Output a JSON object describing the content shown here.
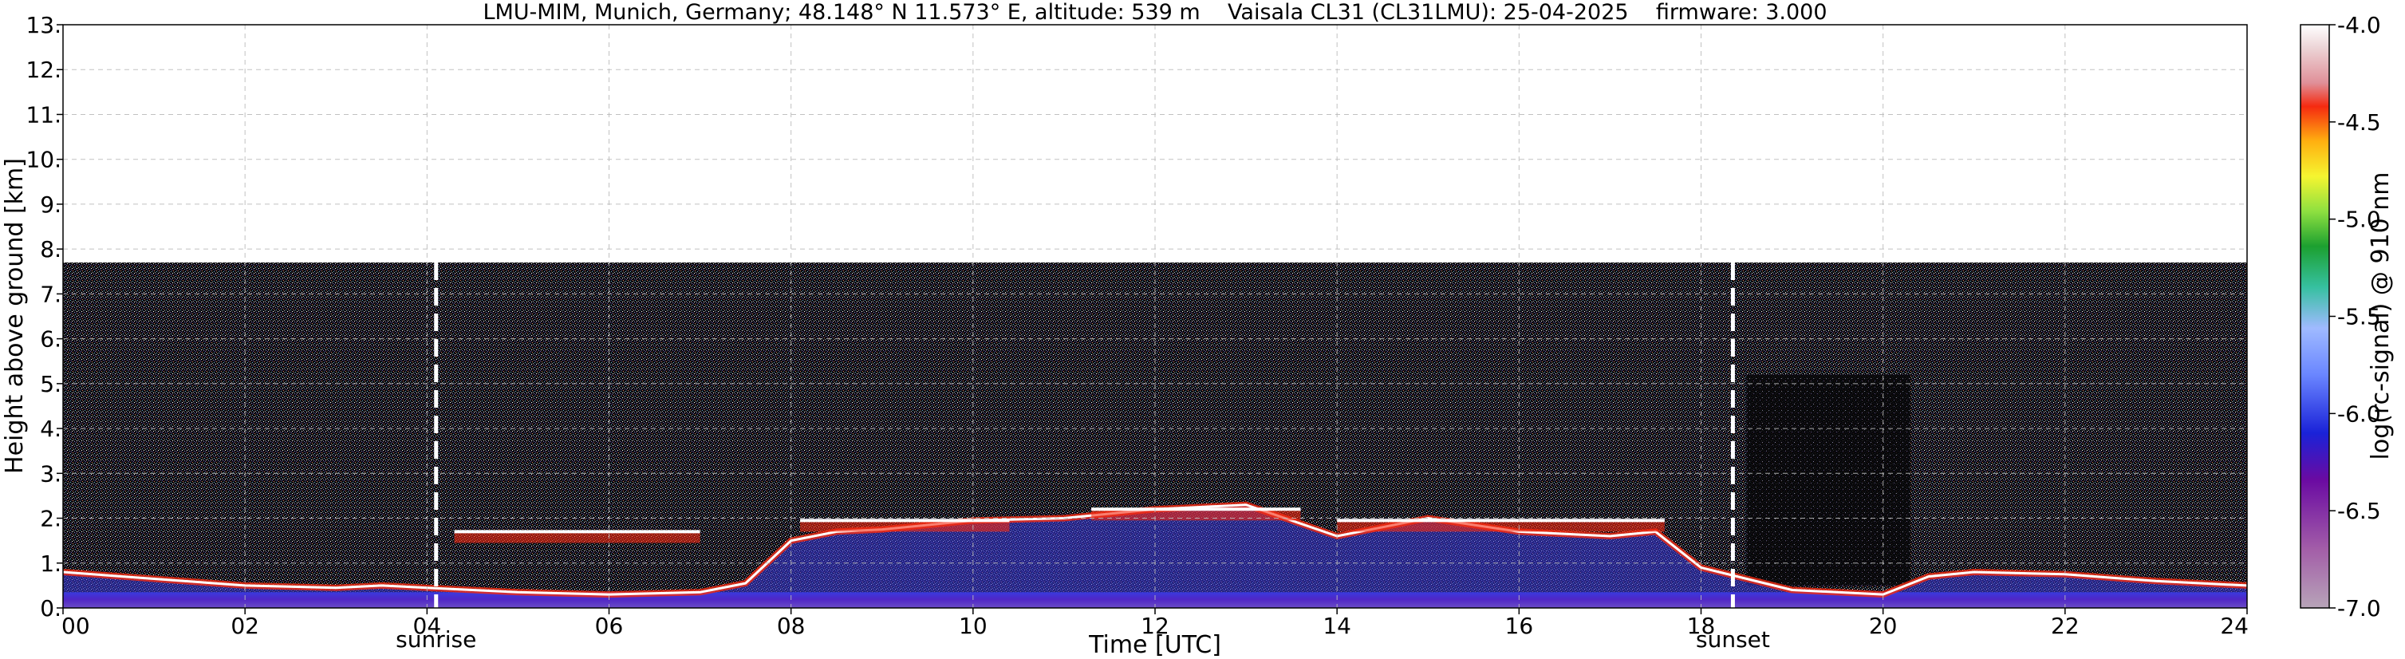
{
  "chart_data": {
    "type": "heatmap",
    "title": "LMU-MIM, Munich, Germany; 48.148° N 11.573° E, altitude: 539 m    Vaisala CL31 (CL31LMU): 25-04-2025    firmware: 3.000",
    "xlabel": "Time [UTC]",
    "ylabel": "Height above ground [km]",
    "xlim": [
      0,
      24
    ],
    "ylim": [
      0,
      13
    ],
    "x_ticks": [
      0,
      2,
      4,
      6,
      8,
      10,
      12,
      14,
      16,
      18,
      20,
      22,
      24
    ],
    "x_tick_labels": [
      "00",
      "02",
      "04",
      "06",
      "08",
      "10",
      "12",
      "14",
      "16",
      "18",
      "20",
      "22",
      "24"
    ],
    "y_ticks": [
      0,
      1,
      2,
      3,
      4,
      5,
      6,
      7,
      8,
      9,
      10,
      11,
      12,
      13
    ],
    "y_tick_labels": [
      "0.",
      "1.",
      "2.",
      "3.",
      "4.",
      "5.",
      "6.",
      "7.",
      "8.",
      "9.",
      "10.",
      "11.",
      "12.",
      "13."
    ],
    "data_top_km": 7.7,
    "grid": true,
    "colorbar": {
      "label": "log(rc-signal) @ 910 nm",
      "range": [
        -7.0,
        -4.0
      ],
      "ticks": [
        -7.0,
        -6.5,
        -6.0,
        -5.5,
        -5.0,
        -4.5,
        -4.0
      ],
      "tick_labels": [
        "-7.0",
        "-6.5",
        "-6.0",
        "-5.5",
        "-5.0",
        "-4.5",
        "-4.0"
      ]
    },
    "annotations": [
      {
        "label": "sunrise",
        "time": 4.1
      },
      {
        "label": "sunset",
        "time": 18.35
      }
    ],
    "boundary_layer_height_km": [
      [
        0.0,
        0.8
      ],
      [
        1.0,
        0.65
      ],
      [
        2.0,
        0.5
      ],
      [
        3.0,
        0.45
      ],
      [
        3.5,
        0.5
      ],
      [
        4.0,
        0.45
      ],
      [
        5.0,
        0.35
      ],
      [
        6.0,
        0.3
      ],
      [
        7.0,
        0.35
      ],
      [
        7.5,
        0.55
      ],
      [
        8.0,
        1.5
      ],
      [
        8.5,
        1.7
      ],
      [
        9.0,
        1.75
      ],
      [
        10.0,
        1.95
      ],
      [
        11.0,
        2.0
      ],
      [
        12.0,
        2.2
      ],
      [
        13.0,
        2.3
      ],
      [
        14.0,
        1.6
      ],
      [
        15.0,
        2.0
      ],
      [
        16.0,
        1.7
      ],
      [
        17.0,
        1.6
      ],
      [
        17.5,
        1.7
      ],
      [
        18.0,
        0.9
      ],
      [
        19.0,
        0.4
      ],
      [
        20.0,
        0.3
      ],
      [
        20.5,
        0.7
      ],
      [
        21.0,
        0.8
      ],
      [
        22.0,
        0.75
      ],
      [
        23.0,
        0.6
      ],
      [
        24.0,
        0.5
      ]
    ],
    "cloud_layers_km": [
      {
        "start": 4.3,
        "end": 7.0,
        "base": 1.7
      },
      {
        "start": 8.1,
        "end": 10.4,
        "base": 1.95
      },
      {
        "start": 11.3,
        "end": 13.6,
        "base": 2.2
      },
      {
        "start": 14.0,
        "end": 17.6,
        "base": 1.95
      }
    ]
  }
}
